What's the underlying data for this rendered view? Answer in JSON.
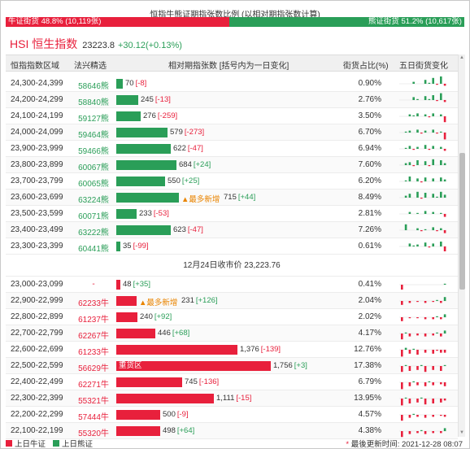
{
  "ratio": {
    "title": "恒指牛熊证期指张数比例 (以相对期指张数计算)",
    "bull_label": "牛证街货 48.8% (10,119张)",
    "bear_label": "熊证街货 51.2% (10,617张)",
    "bull_fraction": 0.488,
    "colors": {
      "bull": "#e8203c",
      "bear": "#2a9e58"
    }
  },
  "index": {
    "name": "HSI 恒生指数",
    "value": "23223.8",
    "change": "+30.12(+0.13%)"
  },
  "columns": {
    "range": "恒指指数区域",
    "pick": "法兴精选",
    "contracts": "相对期指张数 [括号内为一日变化]",
    "share": "街货占比(%)",
    "five_day": "五日街货变化"
  },
  "bear_rows": [
    {
      "range": "24,300-24,399",
      "code": "58646熊",
      "value": 70,
      "value_text": "70",
      "change": "[-8]",
      "share": "0.90%",
      "spark": [
        0,
        0,
        0,
        2,
        0,
        0,
        4,
        1,
        6,
        -1,
        8,
        -2
      ]
    },
    {
      "range": "24,200-24,299",
      "code": "58840熊",
      "value": 245,
      "value_text": "245",
      "change": "[-13]",
      "share": "2.76%",
      "spark": [
        0,
        0,
        0,
        3,
        1,
        0,
        4,
        1,
        5,
        -1,
        7,
        -2
      ]
    },
    {
      "range": "24,100-24,199",
      "code": "59127熊",
      "value": 276,
      "value_text": "276",
      "change": "[-259]",
      "share": "3.50%",
      "spark": [
        0,
        0,
        2,
        1,
        3,
        0,
        2,
        -1,
        3,
        0,
        2,
        -6
      ]
    },
    {
      "range": "24,000-24,099",
      "code": "59464熊",
      "value": 579,
      "value_text": "579",
      "change": "[-273]",
      "share": "6.70%",
      "spark": [
        0,
        1,
        2,
        0,
        3,
        -1,
        2,
        0,
        3,
        -1,
        1,
        -7
      ]
    },
    {
      "range": "23,900-23,999",
      "code": "59466熊",
      "value": 622,
      "value_text": "622",
      "change": "[-47]",
      "share": "6.94%",
      "spark": [
        0,
        1,
        3,
        -1,
        2,
        0,
        4,
        -1,
        3,
        0,
        2,
        -2
      ]
    },
    {
      "range": "23,800-23,899",
      "code": "60067熊",
      "value": 684,
      "value_text": "684",
      "change": "[+24]",
      "share": "7.60%",
      "spark": [
        0,
        2,
        3,
        -1,
        5,
        0,
        4,
        -1,
        6,
        0,
        5,
        2
      ]
    },
    {
      "range": "23,700-23,799",
      "code": "60065熊",
      "value": 550,
      "value_text": "550",
      "change": "[+25]",
      "share": "6.20%",
      "spark": [
        0,
        1,
        5,
        0,
        3,
        -1,
        4,
        0,
        3,
        0,
        4,
        2
      ]
    },
    {
      "range": "23,600-23,699",
      "code": "63224熊",
      "value": 715,
      "value_text": "715",
      "change": "[+44]",
      "share": "8.49%",
      "hot": "▲最多新增",
      "spark": [
        0,
        2,
        4,
        0,
        6,
        -1,
        5,
        0,
        4,
        1,
        6,
        3
      ]
    },
    {
      "range": "23,500-23,599",
      "code": "60071熊",
      "value": 233,
      "value_text": "233",
      "change": "[-53]",
      "share": "2.81%",
      "spark": [
        0,
        0,
        2,
        0,
        1,
        0,
        3,
        0,
        2,
        0,
        1,
        -3
      ]
    },
    {
      "range": "23,400-23,499",
      "code": "63222熊",
      "value": 623,
      "value_text": "623",
      "change": "[-47]",
      "share": "7.26%",
      "spark": [
        0,
        6,
        0,
        0,
        2,
        -1,
        1,
        0,
        3,
        -1,
        2,
        -3
      ]
    },
    {
      "range": "23,300-23,399",
      "code": "60441熊",
      "value": 35,
      "value_text": "35",
      "change": "[-99]",
      "share": "0.61%",
      "spark": [
        0,
        0,
        3,
        1,
        2,
        0,
        4,
        -1,
        3,
        0,
        5,
        -5
      ]
    }
  ],
  "close_label": "12月24日收市价 23,223.76",
  "bull_rows": [
    {
      "range": "23,000-23,099",
      "code": "-",
      "value": 48,
      "value_text": "48",
      "change": "[+35]",
      "share": "0.41%",
      "spark": [
        -5,
        0,
        0,
        0,
        0,
        0,
        0,
        0,
        0,
        0,
        0,
        1
      ]
    },
    {
      "range": "22,900-22,999",
      "code": "62233牛",
      "value": 231,
      "value_text": "231",
      "change": "[+126]",
      "share": "2.04%",
      "hot": "▲最多新增",
      "spark": [
        -4,
        0,
        -2,
        0,
        -1,
        0,
        -2,
        0,
        -1,
        1,
        -2,
        4
      ]
    },
    {
      "range": "22,800-22,899",
      "code": "61237牛",
      "value": 240,
      "value_text": "240",
      "change": "[+92]",
      "share": "2.02%",
      "spark": [
        -4,
        0,
        -1,
        0,
        -1,
        0,
        -2,
        0,
        -2,
        1,
        -2,
        3
      ]
    },
    {
      "range": "22,700-22,799",
      "code": "62267牛",
      "value": 446,
      "value_text": "446",
      "change": "[+68]",
      "share": "4.17%",
      "spark": [
        -6,
        1,
        -3,
        0,
        -2,
        0,
        -3,
        0,
        -2,
        1,
        -3,
        3
      ]
    },
    {
      "range": "22,600-22,699",
      "code": "61233牛",
      "value": 1376,
      "value_text": "1,376",
      "change": "[-139]",
      "share": "12.76%",
      "spark": [
        -7,
        2,
        -4,
        1,
        -5,
        0,
        -3,
        0,
        -4,
        -1,
        -3,
        -3
      ]
    },
    {
      "range": "22,500-22,599",
      "code": "56629牛",
      "value": 1756,
      "value_text": "1,756",
      "change": "[+3]",
      "share": "17.38%",
      "label": "重货区",
      "spark": [
        -6,
        1,
        -5,
        0,
        -4,
        1,
        -6,
        0,
        -4,
        0,
        -5,
        1
      ]
    },
    {
      "range": "22,400-22,499",
      "code": "62271牛",
      "value": 745,
      "value_text": "745",
      "change": "[-136]",
      "share": "6.79%",
      "spark": [
        -7,
        0,
        -4,
        1,
        -3,
        0,
        -4,
        1,
        -3,
        0,
        -2,
        -4
      ]
    },
    {
      "range": "22,300-22,399",
      "code": "55321牛",
      "value": 1111,
      "value_text": "1,111",
      "change": "[-15]",
      "share": "13.95%",
      "spark": [
        -7,
        1,
        -5,
        0,
        -4,
        1,
        -6,
        0,
        -5,
        0,
        -4,
        -2
      ]
    },
    {
      "range": "22,200-22,299",
      "code": "57444牛",
      "value": 500,
      "value_text": "500",
      "change": "[-9]",
      "share": "4.57%",
      "spark": [
        -6,
        0,
        -3,
        1,
        -2,
        0,
        -3,
        0,
        -2,
        0,
        -1,
        -2
      ]
    },
    {
      "range": "22,100-22,199",
      "code": "55320牛",
      "value": 498,
      "value_text": "498",
      "change": "[+64]",
      "share": "4.38%",
      "spark": [
        -6,
        0,
        -3,
        0,
        -2,
        1,
        -3,
        0,
        -2,
        0,
        -2,
        3
      ]
    }
  ],
  "footer": {
    "legend_bull": "上日牛证",
    "legend_bear": "上日熊证",
    "updated": "最後更新时间: 2021-12-28 08:07",
    "asterisk": "*"
  },
  "max_value": 1756
}
